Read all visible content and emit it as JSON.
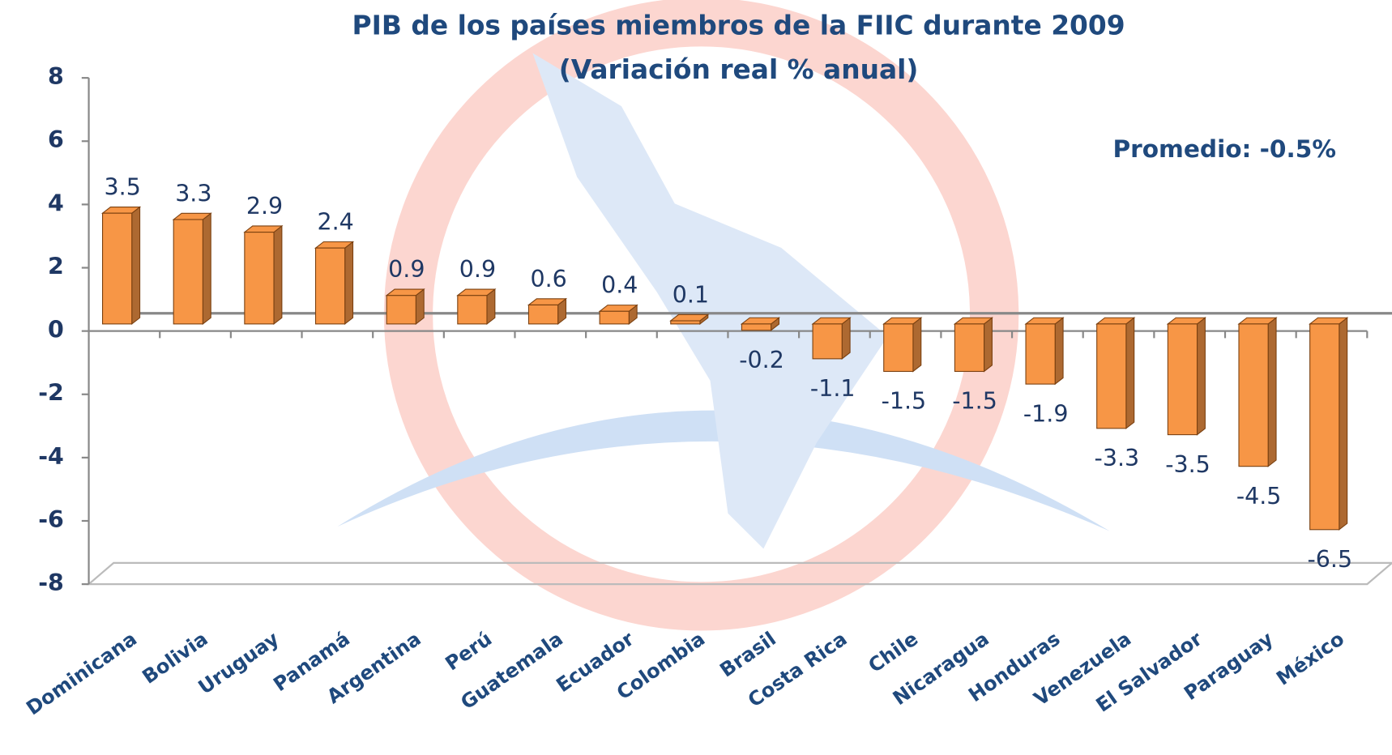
{
  "chart_data": {
    "type": "bar",
    "title": "PIB de los países miembros de la FIIC durante 2009",
    "subtitle": "(Variación real % anual)",
    "annotation": "Promedio: -0.5%",
    "categories": [
      "Dominicana",
      "Bolivia",
      "Uruguay",
      "Panamá",
      "Argentina",
      "Perú",
      "Guatemala",
      "Ecuador",
      "Colombia",
      "Brasil",
      "Costa Rica",
      "Chile",
      "Nicaragua",
      "Honduras",
      "Venezuela",
      "El Salvador",
      "Paraguay",
      "México"
    ],
    "values": [
      3.5,
      3.3,
      2.9,
      2.4,
      0.9,
      0.9,
      0.6,
      0.4,
      0.1,
      -0.2,
      -1.1,
      -1.5,
      -1.5,
      -1.9,
      -3.3,
      -3.5,
      -4.5,
      -6.5
    ],
    "color": "#f79646",
    "ylim": [
      -8,
      8
    ],
    "yticks": [
      -8,
      -6,
      -4,
      -2,
      0,
      2,
      4,
      6,
      8
    ]
  }
}
